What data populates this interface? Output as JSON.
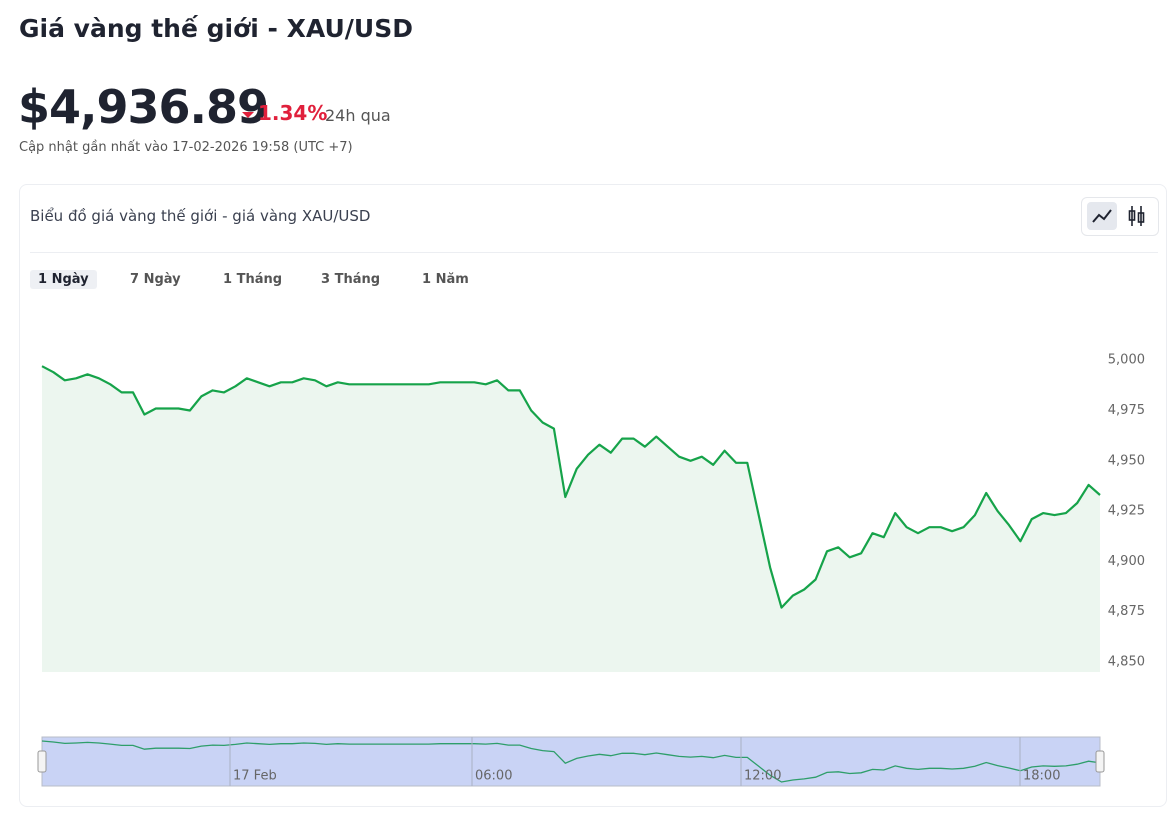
{
  "header": {
    "title": "Giá vàng thế giới - XAU/USD"
  },
  "price": {
    "value": "$4,936.89",
    "change": "1.34%",
    "period": "24h qua",
    "updated": "Cập nhật gần nhất vào 17-02-2026 19:58 (UTC +7)"
  },
  "card": {
    "title": "Biểu đồ giá vàng thế giới - giá vàng XAU/USD",
    "tabs": [
      "1 Ngày",
      "7 Ngày",
      "1 Tháng",
      "3 Tháng",
      "1 Năm"
    ]
  },
  "navigator": {
    "labels": [
      "17 Feb",
      "06:00",
      "12:00",
      "18:00"
    ]
  },
  "chart_data": {
    "type": "line",
    "color": "#16a34a",
    "values": [
      4997,
      4994,
      4990,
      4991,
      4993,
      4991,
      4988,
      4984,
      4984,
      4973,
      4976,
      4976,
      4976,
      4975,
      4982,
      4985,
      4984,
      4987,
      4991,
      4989,
      4987,
      4989,
      4989,
      4991,
      4990,
      4987,
      4989,
      4988,
      4988,
      4988,
      4988,
      4988,
      4988,
      4988,
      4988,
      4989,
      4989,
      4989,
      4989,
      4988,
      4990,
      4985,
      4985,
      4975,
      4969,
      4966,
      4932,
      4946,
      4953,
      4958,
      4954,
      4961,
      4961,
      4957,
      4962,
      4957,
      4952,
      4950,
      4952,
      4948,
      4955,
      4949,
      4949,
      4923,
      4897,
      4877,
      4883,
      4886,
      4891,
      4905,
      4907,
      4902,
      4904,
      4914,
      4912,
      4924,
      4917,
      4914,
      4917,
      4917,
      4915,
      4917,
      4923,
      4934,
      4925,
      4918,
      4910,
      4921,
      4924,
      4923,
      4924,
      4929,
      4938,
      4933
    ],
    "ylim": [
      4845,
      5015
    ],
    "yticks": [
      {
        "value": 4850,
        "label": "4,850"
      },
      {
        "value": 4875,
        "label": "4,875"
      },
      {
        "value": 4900,
        "label": "4,900"
      },
      {
        "value": 4925,
        "label": "4,925"
      },
      {
        "value": 4950,
        "label": "4,950"
      },
      {
        "value": 4975,
        "label": "4,975"
      },
      {
        "value": 5000,
        "label": "5,000"
      }
    ]
  }
}
